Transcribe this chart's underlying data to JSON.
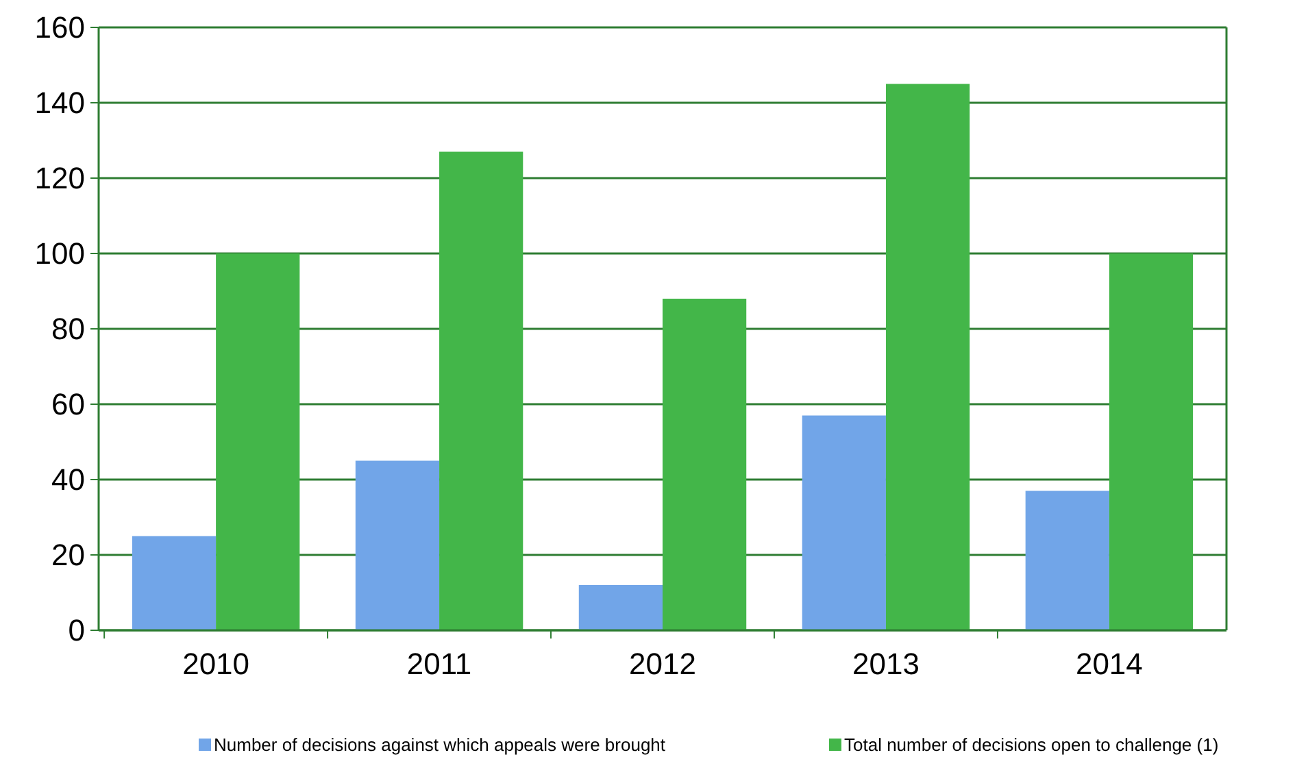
{
  "chart_data": {
    "type": "bar",
    "categories": [
      "2010",
      "2011",
      "2012",
      "2013",
      "2014"
    ],
    "series": [
      {
        "name": "Number of decisions against which appeals were brought",
        "color": "#71a5e8",
        "values": [
          25,
          45,
          12,
          57,
          37
        ]
      },
      {
        "name": "Total number of decisions open to challenge (1)",
        "color": "#43b649",
        "values": [
          100,
          127,
          88,
          145,
          100
        ]
      }
    ],
    "ylim": [
      0,
      160
    ],
    "yticks": [
      0,
      20,
      40,
      60,
      80,
      100,
      120,
      140,
      160
    ],
    "grid": "y",
    "legend": "bottom"
  }
}
